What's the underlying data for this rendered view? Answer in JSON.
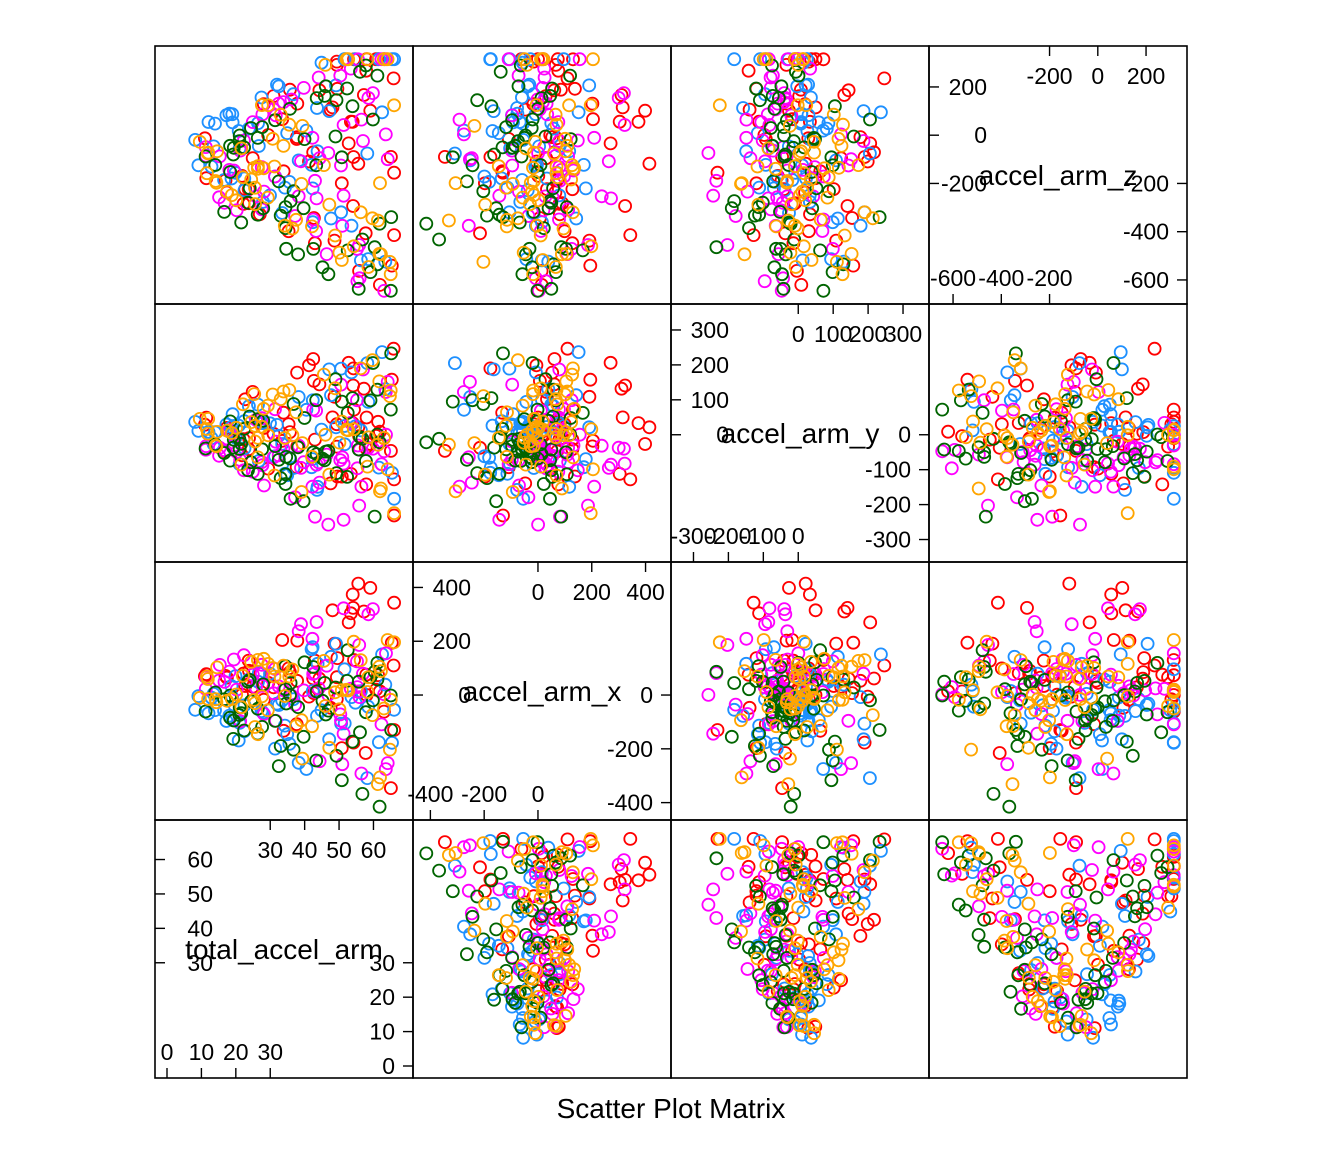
{
  "chart_data": {
    "type": "scatter",
    "title": "Scatter Plot Matrix",
    "variables": [
      "total_accel_arm",
      "accel_arm_x",
      "accel_arm_y",
      "accel_arm_z"
    ],
    "ranges": {
      "total_accel_arm": [
        0,
        68
      ],
      "accel_arm_x": [
        -420,
        450
      ],
      "accel_arm_y": [
        -330,
        340
      ],
      "accel_arm_z": [
        -650,
        320
      ]
    },
    "diagonal_ticks": {
      "total_accel_arm": {
        "left": [
          {
            "v": 0,
            "t": "0"
          },
          {
            "v": 10,
            "t": "10"
          },
          {
            "v": 20,
            "t": "20"
          },
          {
            "v": 30,
            "t": "30"
          }
        ],
        "right": [
          {
            "v": 30,
            "t": "30"
          },
          {
            "v": 40,
            "t": "40"
          },
          {
            "v": 50,
            "t": "50"
          },
          {
            "v": 60,
            "t": "60"
          }
        ]
      },
      "accel_arm_x": {
        "left": [
          {
            "v": -400,
            "t": "-400"
          },
          {
            "v": -200,
            "t": "-200"
          },
          {
            "v": 0,
            "t": "0"
          }
        ],
        "right": [
          {
            "v": 0,
            "t": "0"
          },
          {
            "v": 200,
            "t": "200"
          },
          {
            "v": 400,
            "t": "400"
          }
        ]
      },
      "accel_arm_y": {
        "left": [
          {
            "v": -300,
            "t": "-300"
          },
          {
            "v": -200,
            "t": "-200"
          },
          {
            "v": -100,
            "t": "-100"
          },
          {
            "v": 0,
            "t": "0"
          }
        ],
        "right": [
          {
            "v": 0,
            "t": "0"
          },
          {
            "v": 100,
            "t": "100"
          },
          {
            "v": 200,
            "t": "200"
          },
          {
            "v": 300,
            "t": "300"
          }
        ]
      },
      "accel_arm_z": {
        "left": [
          {
            "v": -600,
            "t": "-600"
          },
          {
            "v": -400,
            "t": "-400"
          },
          {
            "v": -200,
            "t": "-200"
          }
        ],
        "right": [
          {
            "v": -200,
            "t": "-200"
          },
          {
            "v": 0,
            "t": "0"
          },
          {
            "v": 200,
            "t": "200"
          }
        ]
      }
    },
    "groups": [
      {
        "color": "#FF0000"
      },
      {
        "color": "#1E90FF"
      },
      {
        "color": "#FF00FF"
      },
      {
        "color": "#006400"
      },
      {
        "color": "#FFA500"
      }
    ],
    "grid": false
  }
}
